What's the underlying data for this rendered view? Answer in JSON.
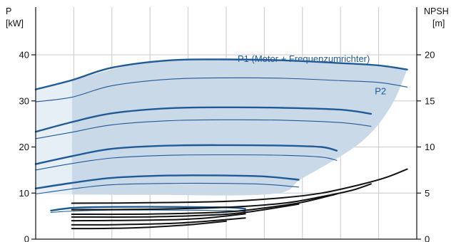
{
  "chart_data": {
    "type": "line",
    "axes": {
      "left": {
        "title_line1": "P",
        "title_line2": "[kW]",
        "ylim": [
          0,
          45
        ],
        "ticks": [
          "0",
          "10",
          "20",
          "30",
          "40"
        ]
      },
      "right": {
        "title_line1": "NPSH",
        "title_line2": "[m]",
        "ylim": [
          0,
          22.5
        ],
        "ticks": [
          "0",
          "5",
          "10",
          "15",
          "20"
        ]
      }
    },
    "x_domain": [
      0,
      1
    ],
    "x_gridlines": 9,
    "grid": true,
    "colors": {
      "power": "#1d5a9a",
      "npsh": "#111111",
      "region": "#cad9e8",
      "region_light": "#e6eef6",
      "grid": "#c8c8c8"
    },
    "annotations": [
      {
        "text": "P1 (Motor + Frequenzumrichter)",
        "x": 0.53,
        "y": 39.2
      },
      {
        "text": "P2",
        "x": 0.89,
        "y": 32.2
      }
    ],
    "region": {
      "upper": [
        [
          0.095,
          34.5
        ],
        [
          0.3,
          38.6
        ],
        [
          0.5,
          39.0
        ],
        [
          0.7,
          38.7
        ],
        [
          0.85,
          37.8
        ],
        [
          0.975,
          36.8
        ]
      ],
      "lower": [
        [
          0.975,
          36.8
        ],
        [
          0.93,
          28.5
        ],
        [
          0.85,
          20.8
        ],
        [
          0.7,
          13.2
        ],
        [
          0.62,
          9.8
        ],
        [
          0.3,
          9.6
        ],
        [
          0.095,
          9.7
        ]
      ]
    },
    "power_series": [
      {
        "role": "P1",
        "speed": 1,
        "points": [
          [
            0,
            32.5
          ],
          [
            0.095,
            34.5
          ],
          [
            0.2,
            37.2
          ],
          [
            0.35,
            38.8
          ],
          [
            0.5,
            39.0
          ],
          [
            0.65,
            38.8
          ],
          [
            0.8,
            38.2
          ],
          [
            0.9,
            37.7
          ],
          [
            0.975,
            36.8
          ]
        ]
      },
      {
        "role": "P2",
        "speed": 1,
        "points": [
          [
            0,
            29.8
          ],
          [
            0.095,
            30.8
          ],
          [
            0.2,
            33.3
          ],
          [
            0.35,
            34.7
          ],
          [
            0.5,
            35.0
          ],
          [
            0.65,
            34.9
          ],
          [
            0.8,
            34.4
          ],
          [
            0.9,
            34.0
          ],
          [
            0.975,
            33.0
          ]
        ]
      },
      {
        "role": "P1",
        "speed": 2,
        "points": [
          [
            0,
            23.3
          ],
          [
            0.095,
            25.4
          ],
          [
            0.2,
            27.3
          ],
          [
            0.35,
            28.4
          ],
          [
            0.5,
            28.6
          ],
          [
            0.65,
            28.5
          ],
          [
            0.8,
            28.1
          ],
          [
            0.88,
            27.2
          ]
        ]
      },
      {
        "role": "P2",
        "speed": 2,
        "points": [
          [
            0,
            21.8
          ],
          [
            0.095,
            23.2
          ],
          [
            0.2,
            24.8
          ],
          [
            0.35,
            25.7
          ],
          [
            0.5,
            25.9
          ],
          [
            0.65,
            25.8
          ],
          [
            0.8,
            25.3
          ],
          [
            0.88,
            24.5
          ]
        ]
      },
      {
        "role": "P1",
        "speed": 3,
        "points": [
          [
            0,
            16.3
          ],
          [
            0.095,
            18.0
          ],
          [
            0.2,
            19.6
          ],
          [
            0.35,
            20.3
          ],
          [
            0.5,
            20.4
          ],
          [
            0.65,
            20.3
          ],
          [
            0.75,
            20.0
          ],
          [
            0.79,
            19.2
          ]
        ]
      },
      {
        "role": "P2",
        "speed": 3,
        "points": [
          [
            0,
            15.0
          ],
          [
            0.095,
            16.4
          ],
          [
            0.2,
            17.6
          ],
          [
            0.35,
            18.2
          ],
          [
            0.5,
            18.3
          ],
          [
            0.65,
            18.2
          ],
          [
            0.75,
            17.8
          ],
          [
            0.79,
            17.1
          ]
        ]
      },
      {
        "role": "P1",
        "speed": 4,
        "points": [
          [
            0,
            11.0
          ],
          [
            0.095,
            12.2
          ],
          [
            0.2,
            13.3
          ],
          [
            0.35,
            13.8
          ],
          [
            0.5,
            13.8
          ],
          [
            0.6,
            13.6
          ],
          [
            0.69,
            12.9
          ]
        ]
      },
      {
        "role": "P2",
        "speed": 4,
        "points": [
          [
            0,
            9.8
          ],
          [
            0.095,
            10.9
          ],
          [
            0.2,
            11.8
          ],
          [
            0.35,
            12.1
          ],
          [
            0.5,
            12.1
          ],
          [
            0.6,
            11.9
          ],
          [
            0.69,
            11.3
          ]
        ]
      },
      {
        "role": "P1",
        "speed": 5,
        "points": [
          [
            0.04,
            6.2
          ],
          [
            0.1,
            6.8
          ],
          [
            0.2,
            7.0
          ],
          [
            0.35,
            7.0
          ],
          [
            0.5,
            6.9
          ],
          [
            0.55,
            6.6
          ]
        ]
      },
      {
        "role": "P2",
        "speed": 5,
        "points": [
          [
            0.04,
            5.8
          ],
          [
            0.1,
            6.1
          ],
          [
            0.2,
            6.3
          ],
          [
            0.35,
            6.3
          ],
          [
            0.5,
            6.2
          ],
          [
            0.55,
            6.0
          ]
        ]
      }
    ],
    "npsh_series": [
      {
        "speed": 1,
        "points": [
          [
            0.095,
            3.9
          ],
          [
            0.3,
            3.95
          ],
          [
            0.5,
            4.1
          ],
          [
            0.65,
            4.5
          ],
          [
            0.75,
            5.0
          ],
          [
            0.85,
            5.9
          ],
          [
            0.92,
            6.7
          ],
          [
            0.975,
            7.6
          ]
        ]
      },
      {
        "speed": 2,
        "points": [
          [
            0.095,
            3.2
          ],
          [
            0.3,
            3.25
          ],
          [
            0.5,
            3.45
          ],
          [
            0.65,
            3.9
          ],
          [
            0.75,
            4.6
          ],
          [
            0.83,
            5.3
          ],
          [
            0.88,
            6.0
          ]
        ]
      },
      {
        "speed": 3,
        "points": [
          [
            0.095,
            2.7
          ],
          [
            0.3,
            2.72
          ],
          [
            0.5,
            2.95
          ],
          [
            0.62,
            3.5
          ],
          [
            0.7,
            4.0
          ],
          [
            0.79,
            4.9
          ]
        ]
      },
      {
        "speed": 4,
        "points": [
          [
            0.095,
            2.4
          ],
          [
            0.3,
            2.42
          ],
          [
            0.45,
            2.6
          ],
          [
            0.55,
            2.9
          ],
          [
            0.69,
            3.8
          ]
        ]
      },
      {
        "speed": 5,
        "points": [
          [
            0.095,
            2.0
          ],
          [
            0.2,
            2.02
          ],
          [
            0.35,
            2.1
          ],
          [
            0.45,
            2.3
          ],
          [
            0.55,
            2.75
          ]
        ]
      },
      {
        "speed": 6,
        "points": [
          [
            0.095,
            1.55
          ],
          [
            0.2,
            1.57
          ],
          [
            0.35,
            1.7
          ],
          [
            0.45,
            1.95
          ],
          [
            0.55,
            2.3
          ]
        ]
      },
      {
        "speed": 7,
        "points": [
          [
            0.095,
            1.15
          ],
          [
            0.2,
            1.17
          ],
          [
            0.3,
            1.3
          ],
          [
            0.4,
            1.55
          ],
          [
            0.5,
            1.95
          ]
        ]
      }
    ]
  }
}
